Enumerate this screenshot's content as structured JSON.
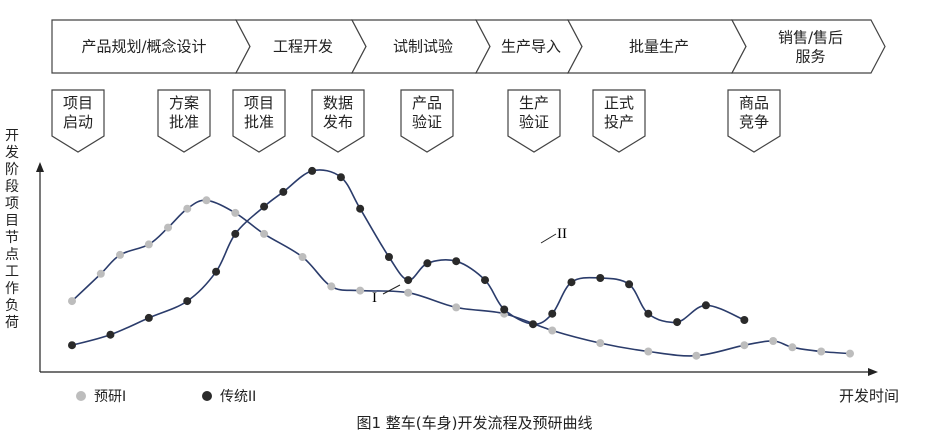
{
  "stages": [
    {
      "label": "产品规划/概念设计"
    },
    {
      "label": "工程开发"
    },
    {
      "label": "试制试验"
    },
    {
      "label": "生产导入"
    },
    {
      "label": "批量生产"
    },
    {
      "label": "销售/售后服务"
    }
  ],
  "milestones": [
    {
      "label": "项目启动"
    },
    {
      "label": "方案批准"
    },
    {
      "label": "项目批准"
    },
    {
      "label": "数据发布"
    },
    {
      "label": "产品验证"
    },
    {
      "label": "生产验证"
    },
    {
      "label": "正式投产"
    },
    {
      "label": "商品竞争"
    }
  ],
  "axis": {
    "ylabel": "开发阶段项目节点工作负荷",
    "xlabel": "开发时间"
  },
  "curve_labels": {
    "one": "I",
    "two": "II"
  },
  "legend": {
    "one": "预研I",
    "two": "传统II"
  },
  "caption": "图1  整车(车身)开发流程及预研曲线",
  "colors": {
    "line": "#2b3c6b",
    "dot_one": "#bdbdbd",
    "dot_two": "#2a2a2a"
  },
  "chart_data": {
    "type": "line",
    "xlabel": "开发时间",
    "ylabel": "开发阶段项目节点工作负荷",
    "series": [
      {
        "name": "预研I",
        "x": [
          0,
          3,
          5,
          8,
          10,
          12,
          14,
          17,
          20,
          24,
          27,
          30,
          35,
          40,
          45,
          50,
          55,
          60,
          65,
          70,
          73,
          75,
          78,
          81
        ],
        "y": [
          2.9,
          4.2,
          5.1,
          5.6,
          6.4,
          7.3,
          7.7,
          7.1,
          6.1,
          5.0,
          3.6,
          3.4,
          3.3,
          2.6,
          2.3,
          1.5,
          0.9,
          0.5,
          0.3,
          0.8,
          1.0,
          0.7,
          0.5,
          0.4
        ]
      },
      {
        "name": "传统II",
        "x": [
          0,
          4,
          8,
          12,
          15,
          17,
          20,
          22,
          25,
          28,
          30,
          33,
          35,
          37,
          40,
          43,
          45,
          48,
          50,
          52,
          55,
          58,
          60,
          63,
          66,
          70
        ],
        "y": [
          0.8,
          1.3,
          2.1,
          2.9,
          4.3,
          6.1,
          7.4,
          8.1,
          9.1,
          8.8,
          7.3,
          5.0,
          3.9,
          4.7,
          4.8,
          3.9,
          2.5,
          1.8,
          2.3,
          3.8,
          4.0,
          3.7,
          2.3,
          1.9,
          2.7,
          2.0
        ]
      }
    ]
  }
}
